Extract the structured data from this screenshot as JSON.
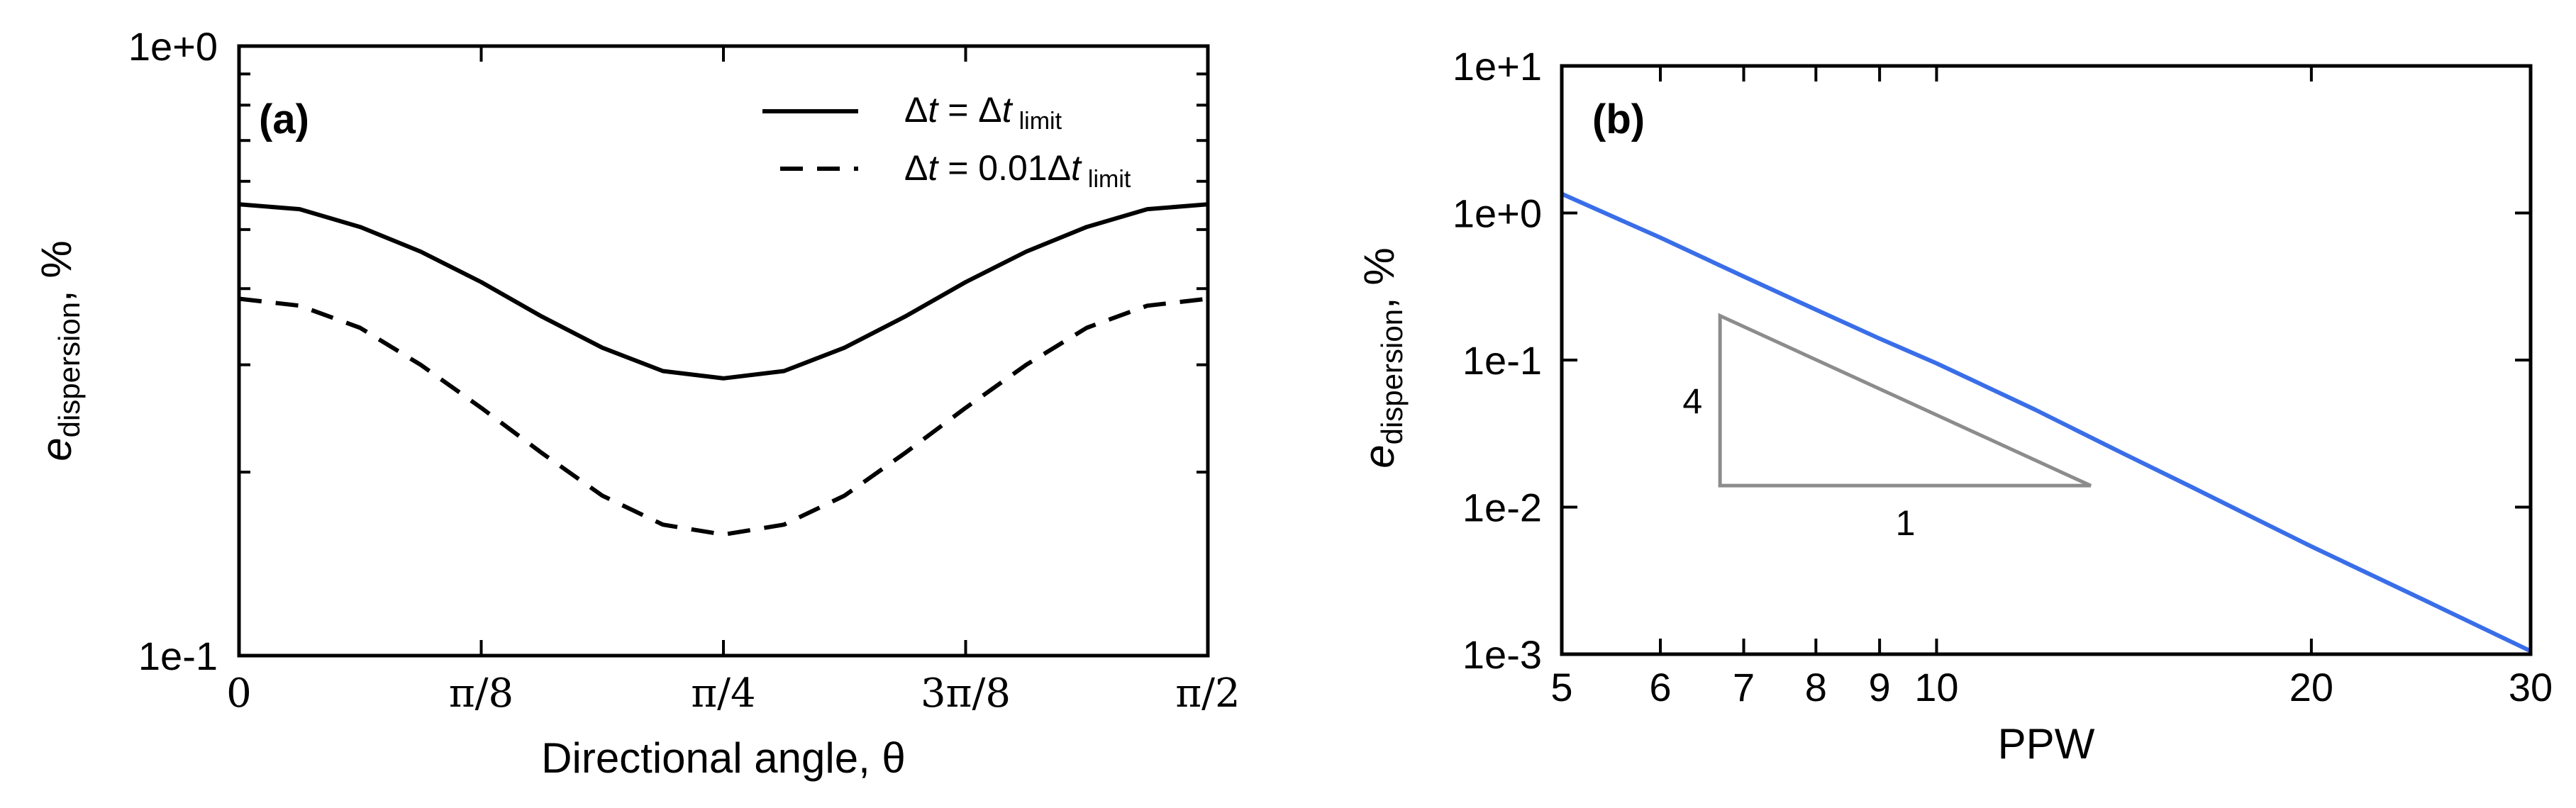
{
  "chart_data": [
    {
      "type": "line",
      "panel_label": "(a)",
      "xlabel": "Directional angle, θ",
      "ylabel_main": "e",
      "ylabel_sub": "dispersion",
      "ylabel_unit": ", %",
      "yscale": "log",
      "ylim": [
        0.1,
        1.0
      ],
      "xlim": [
        0,
        1.5708
      ],
      "x_ticks": [
        {
          "value": 0,
          "label": "0"
        },
        {
          "value": 0.3927,
          "label": "π/8"
        },
        {
          "value": 0.7854,
          "label": "π/4"
        },
        {
          "value": 1.1781,
          "label": "3π/8"
        },
        {
          "value": 1.5708,
          "label": "π/2"
        }
      ],
      "y_tick_labels": [
        {
          "value": 1.0,
          "label": "1e+0"
        },
        {
          "value": 0.1,
          "label": "1e-1"
        }
      ],
      "y_minor_ticks": [
        0.2,
        0.3,
        0.4,
        0.5,
        0.6,
        0.7,
        0.8,
        0.9
      ],
      "legend_position": "top-right",
      "series": [
        {
          "name": "Δt = Δt limit",
          "legend_parts": [
            "Δ",
            "t",
            " = Δ",
            "t",
            "limit"
          ],
          "style": "solid",
          "color": "#000000",
          "x": [
            0,
            0.0982,
            0.1963,
            0.2945,
            0.3927,
            0.4909,
            0.589,
            0.6872,
            0.7854,
            0.8836,
            0.9817,
            1.0799,
            1.1781,
            1.2763,
            1.3744,
            1.4726,
            1.5708
          ],
          "y": [
            0.55,
            0.54,
            0.505,
            0.46,
            0.41,
            0.36,
            0.32,
            0.293,
            0.285,
            0.293,
            0.32,
            0.36,
            0.41,
            0.46,
            0.505,
            0.54,
            0.55
          ]
        },
        {
          "name": "Δt = 0.01Δt limit",
          "legend_parts": [
            "Δ",
            "t",
            " = 0.01Δ",
            "t",
            "limit"
          ],
          "style": "dashed",
          "color": "#000000",
          "x": [
            0,
            0.0982,
            0.1963,
            0.2945,
            0.3927,
            0.4909,
            0.589,
            0.6872,
            0.7854,
            0.8836,
            0.9817,
            1.0799,
            1.1781,
            1.2763,
            1.3744,
            1.4726,
            1.5708
          ],
          "y": [
            0.385,
            0.375,
            0.345,
            0.3,
            0.255,
            0.215,
            0.183,
            0.164,
            0.158,
            0.164,
            0.183,
            0.215,
            0.255,
            0.3,
            0.345,
            0.375,
            0.385
          ]
        }
      ]
    },
    {
      "type": "line",
      "panel_label": "(b)",
      "xlabel": "PPW",
      "ylabel_main": "e",
      "ylabel_sub": "dispersion",
      "ylabel_unit": ", %",
      "xscale": "log",
      "yscale": "log",
      "xlim": [
        5,
        30
      ],
      "ylim": [
        0.001,
        10
      ],
      "x_ticks": [
        {
          "value": 5,
          "label": "5"
        },
        {
          "value": 6,
          "label": "6"
        },
        {
          "value": 7,
          "label": "7"
        },
        {
          "value": 8,
          "label": "8"
        },
        {
          "value": 9,
          "label": "9"
        },
        {
          "value": 10,
          "label": "10"
        },
        {
          "value": 20,
          "label": "20"
        },
        {
          "value": 30,
          "label": "30"
        }
      ],
      "y_ticks": [
        {
          "value": 10,
          "label": "1e+1"
        },
        {
          "value": 1,
          "label": "1e+0"
        },
        {
          "value": 0.1,
          "label": "1e-1"
        },
        {
          "value": 0.01,
          "label": "1e-2"
        },
        {
          "value": 0.001,
          "label": "1e-3"
        }
      ],
      "series": [
        {
          "style": "solid",
          "color": "#3a6ee8",
          "x": [
            5,
            6,
            7,
            8,
            9,
            10,
            12,
            14,
            16,
            18,
            20,
            25,
            30
          ],
          "y": [
            1.35,
            0.68,
            0.37,
            0.22,
            0.14,
            0.095,
            0.046,
            0.024,
            0.0138,
            0.0084,
            0.0054,
            0.0022,
            0.00105
          ]
        }
      ],
      "slope_triangle": {
        "vertical_label": "4",
        "horizontal_label": "1",
        "color": "#8c8c8c",
        "x_left": 6.7,
        "x_right": 13.3,
        "y_top": 0.2,
        "y_bottom": 0.014
      }
    }
  ]
}
